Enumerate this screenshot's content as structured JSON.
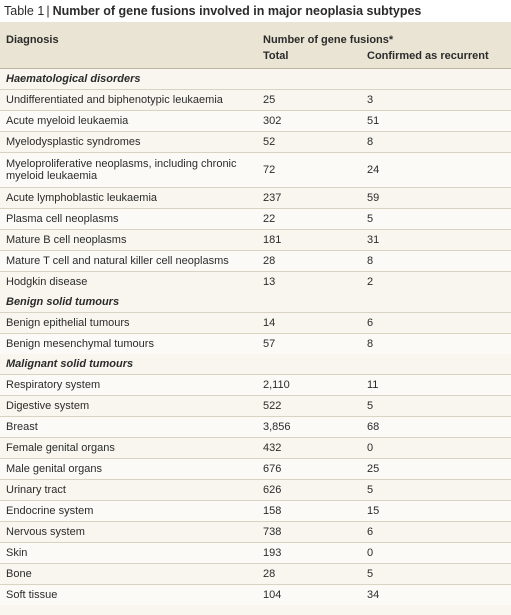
{
  "table": {
    "label": "Table 1",
    "separator": "|",
    "title": "Number of gene fusions involved in major neoplasia subtypes",
    "header_diagnosis": "Diagnosis",
    "header_group": "Number of gene fusions*",
    "header_total": "Total",
    "header_confirmed": "Confirmed as recurrent",
    "sections": [
      {
        "title": "Haematological disorders",
        "rows": [
          {
            "diagnosis": "Undifferentiated and biphenotypic leukaemia",
            "total": "25",
            "confirmed": "3"
          },
          {
            "diagnosis": "Acute myeloid leukaemia",
            "total": "302",
            "confirmed": "51"
          },
          {
            "diagnosis": "Myelodysplastic syndromes",
            "total": "52",
            "confirmed": "8"
          },
          {
            "diagnosis": "Myeloproliferative neoplasms, including chronic myeloid leukaemia",
            "total": "72",
            "confirmed": "24"
          },
          {
            "diagnosis": "Acute lymphoblastic leukaemia",
            "total": "237",
            "confirmed": "59"
          },
          {
            "diagnosis": "Plasma cell neoplasms",
            "total": "22",
            "confirmed": "5"
          },
          {
            "diagnosis": "Mature B cell neoplasms",
            "total": "181",
            "confirmed": "31"
          },
          {
            "diagnosis": "Mature T cell and natural killer cell neoplasms",
            "total": "28",
            "confirmed": "8"
          },
          {
            "diagnosis": "Hodgkin disease",
            "total": "13",
            "confirmed": "2"
          }
        ]
      },
      {
        "title": "Benign solid tumours",
        "rows": [
          {
            "diagnosis": "Benign epithelial tumours",
            "total": "14",
            "confirmed": "6"
          },
          {
            "diagnosis": "Benign mesenchymal tumours",
            "total": "57",
            "confirmed": "8"
          }
        ]
      },
      {
        "title": "Malignant solid tumours",
        "rows": [
          {
            "diagnosis": "Respiratory system",
            "total": "2,110",
            "confirmed": "11"
          },
          {
            "diagnosis": "Digestive system",
            "total": "522",
            "confirmed": "5"
          },
          {
            "diagnosis": "Breast",
            "total": "3,856",
            "confirmed": "68"
          },
          {
            "diagnosis": "Female genital organs",
            "total": "432",
            "confirmed": "0"
          },
          {
            "diagnosis": "Male genital organs",
            "total": "676",
            "confirmed": "25"
          },
          {
            "diagnosis": "Urinary tract",
            "total": "626",
            "confirmed": "5"
          },
          {
            "diagnosis": "Endocrine system",
            "total": "158",
            "confirmed": "15"
          },
          {
            "diagnosis": "Nervous system",
            "total": "738",
            "confirmed": "6"
          },
          {
            "diagnosis": "Skin",
            "total": "193",
            "confirmed": "0"
          },
          {
            "diagnosis": "Bone",
            "total": "28",
            "confirmed": "5"
          },
          {
            "diagnosis": "Soft tissue",
            "total": "104",
            "confirmed": "34"
          }
        ]
      }
    ]
  }
}
